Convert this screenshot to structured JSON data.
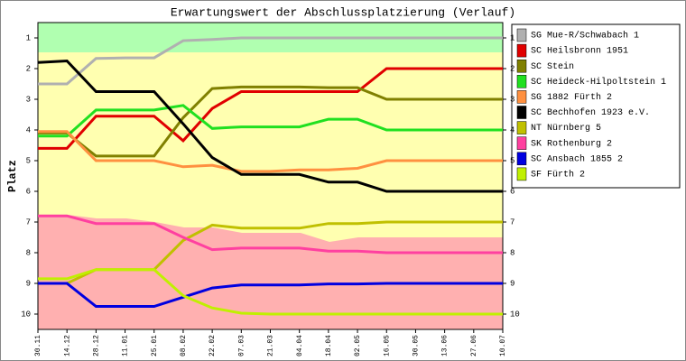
{
  "chart_data": {
    "type": "line",
    "title": "Erwartungswert der Abschlussplatzierung (Verlauf)",
    "y_label": "Platz",
    "categories": [
      "30.11",
      "14.12",
      "28.12",
      "11.01",
      "25.01",
      "08.02",
      "22.02",
      "07.03",
      "21.03",
      "04.04",
      "18.04",
      "02.05",
      "16.05",
      "30.05",
      "13.06",
      "27.06",
      "10.07"
    ],
    "ylim": [
      10.5,
      0.5
    ],
    "yticks": [
      1,
      2,
      3,
      4,
      5,
      6,
      7,
      8,
      9,
      10
    ],
    "series": [
      {
        "name": "SG Mue-R/Schwabach 1",
        "color": "#b0b0b0",
        "values": [
          2.5,
          2.5,
          1.67,
          1.65,
          1.65,
          1.09,
          1.05,
          1.0,
          1.0,
          1.0,
          1.0,
          1.0,
          1.0,
          1.0,
          1.0,
          1.0,
          1.0
        ]
      },
      {
        "name": "SC Heilsbronn 1951",
        "color": "#e00000",
        "values": [
          4.6,
          4.6,
          3.55,
          3.55,
          3.55,
          4.35,
          3.3,
          2.75,
          2.75,
          2.75,
          2.75,
          2.75,
          2.0,
          2.0,
          2.0,
          2.0,
          2.0
        ]
      },
      {
        "name": "SC Stein",
        "color": "#808000",
        "values": [
          4.1,
          4.1,
          4.85,
          4.85,
          4.85,
          3.6,
          2.65,
          2.6,
          2.6,
          2.6,
          2.62,
          2.62,
          3.0,
          3.0,
          3.0,
          3.0,
          3.0
        ]
      },
      {
        "name": "SC Heideck-Hilpoltstein 1",
        "color": "#20e020",
        "values": [
          4.2,
          4.2,
          3.35,
          3.35,
          3.35,
          3.2,
          3.95,
          3.9,
          3.9,
          3.9,
          3.65,
          3.65,
          4.0,
          4.0,
          4.0,
          4.0,
          4.0
        ]
      },
      {
        "name": "SG 1882 Fürth 2",
        "color": "#ff9040",
        "values": [
          4.05,
          4.05,
          5.0,
          5.0,
          5.0,
          5.2,
          5.15,
          5.35,
          5.35,
          5.3,
          5.3,
          5.25,
          5.0,
          5.0,
          5.0,
          5.0,
          5.0
        ]
      },
      {
        "name": "SC Bechhofen 1923 e.V.",
        "color": "#000000",
        "values": [
          1.8,
          1.75,
          2.75,
          2.75,
          2.75,
          3.8,
          4.9,
          5.45,
          5.45,
          5.45,
          5.7,
          5.7,
          6.0,
          6.0,
          6.0,
          6.0,
          6.0
        ]
      },
      {
        "name": "NT Nürnberg 5",
        "color": "#c0c000",
        "values": [
          9.0,
          9.0,
          8.55,
          8.55,
          8.55,
          7.6,
          7.1,
          7.2,
          7.2,
          7.2,
          7.05,
          7.05,
          7.0,
          7.0,
          7.0,
          7.0,
          7.0
        ]
      },
      {
        "name": "SK Rothenburg 2",
        "color": "#ff40a0",
        "values": [
          6.8,
          6.8,
          7.05,
          7.05,
          7.05,
          7.5,
          7.9,
          7.85,
          7.85,
          7.85,
          7.95,
          7.95,
          8.0,
          8.0,
          8.0,
          8.0,
          8.0
        ]
      },
      {
        "name": "SC Ansbach 1855 2",
        "color": "#0000e0",
        "values": [
          9.0,
          9.0,
          9.75,
          9.75,
          9.75,
          9.45,
          9.15,
          9.05,
          9.05,
          9.05,
          9.02,
          9.02,
          9.0,
          9.0,
          9.0,
          9.0,
          9.0
        ]
      },
      {
        "name": "SF Fürth 2",
        "color": "#c0f000",
        "values": [
          8.85,
          8.85,
          8.55,
          8.55,
          8.55,
          9.4,
          9.8,
          9.97,
          10.0,
          10.0,
          10.0,
          10.0,
          10.0,
          10.0,
          10.0,
          10.0,
          10.0
        ]
      }
    ]
  }
}
